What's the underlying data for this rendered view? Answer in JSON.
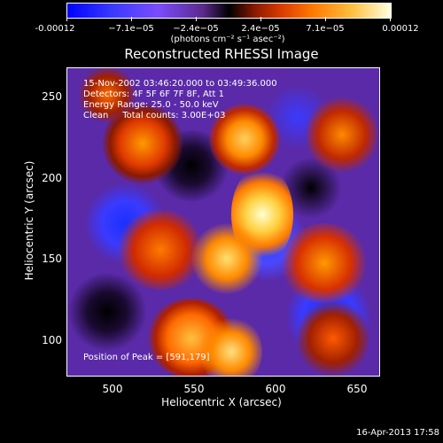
{
  "colorbar": {
    "ticks": [
      "-0.00012",
      "−7.1e−05",
      "−2.4e−05",
      "2.4e−05",
      "7.1e−05",
      "0.00012"
    ],
    "unit": "(photons cm⁻² s⁻¹ asec⁻²)"
  },
  "title": "Reconstructed RHESSI Image",
  "info": {
    "line1": "15-Nov-2002 03:46:20.000 to 03:49:36.000",
    "line2": "Detectors: 4F 5F 6F 7F 8F, Att 1",
    "line3": "Energy Range: 25.0 - 50.0 keV",
    "line4": "Clean     Total counts: 3.00E+03",
    "peak": "Position of Peak = [591,179]"
  },
  "axes": {
    "yticks": [
      "250",
      "200",
      "150",
      "100"
    ],
    "xticks": [
      "500",
      "550",
      "600",
      "650"
    ],
    "ylabel": "Heliocentric Y (arcsec)",
    "xlabel": "Heliocentric X (arcsec)"
  },
  "timestamp": "16-Apr-2013 17:58",
  "colors": {
    "low": "#0000ff",
    "mid": "#000000",
    "high": "#ffffe0",
    "background_fill": "#5a2aa8"
  }
}
